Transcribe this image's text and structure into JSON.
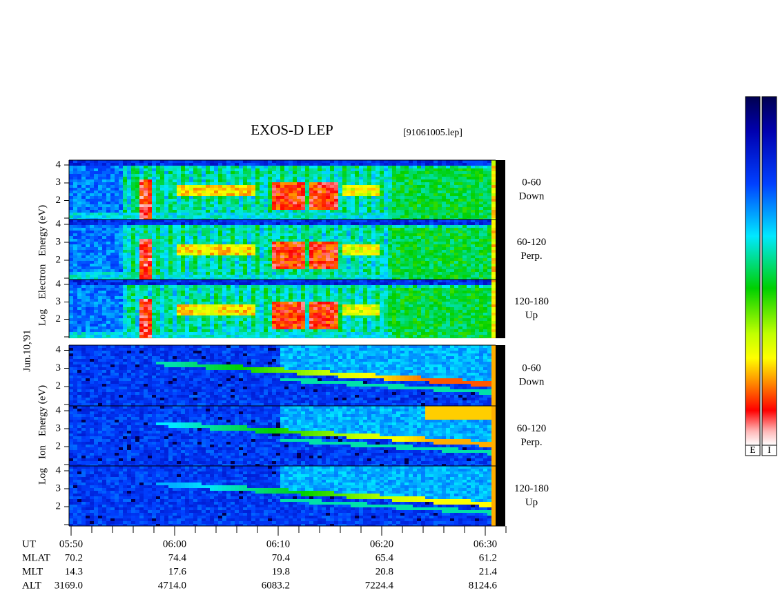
{
  "header": {
    "title": "EXOS-D LEP",
    "file": "[91061005.lep]"
  },
  "date": "Jun.10,'91",
  "electron": {
    "axis_words": [
      "Log",
      "Electron",
      "Energy (eV)"
    ],
    "panels": [
      {
        "angle": "0-60",
        "direction": "Down"
      },
      {
        "angle": "60-120",
        "direction": "Perp."
      },
      {
        "angle": "120-180",
        "direction": "Up"
      }
    ]
  },
  "ion": {
    "axis_words": [
      "Log",
      "Ion",
      "Energy (eV)"
    ],
    "panels": [
      {
        "angle": "0-60",
        "direction": "Down"
      },
      {
        "angle": "60-120",
        "direction": "Perp."
      },
      {
        "angle": "120-180",
        "direction": "Up"
      }
    ]
  },
  "ylim": [
    1,
    4.2
  ],
  "yticks": [
    2,
    3,
    4
  ],
  "orbit": {
    "rows": [
      {
        "label": "UT",
        "values": [
          "05:50",
          "06:00",
          "06:10",
          "06:20",
          "06:30"
        ]
      },
      {
        "label": "MLAT",
        "values": [
          "70.2",
          "74.4",
          "70.4",
          "65.4",
          "61.2"
        ]
      },
      {
        "label": "MLT",
        "values": [
          "14.3",
          "17.6",
          "19.8",
          "20.8",
          "21.4"
        ]
      },
      {
        "label": "ALT",
        "values": [
          "3169.0",
          "4714.0",
          "6083.2",
          "7224.4",
          "8124.6"
        ]
      }
    ]
  },
  "colorbars": [
    "E",
    "I"
  ]
}
